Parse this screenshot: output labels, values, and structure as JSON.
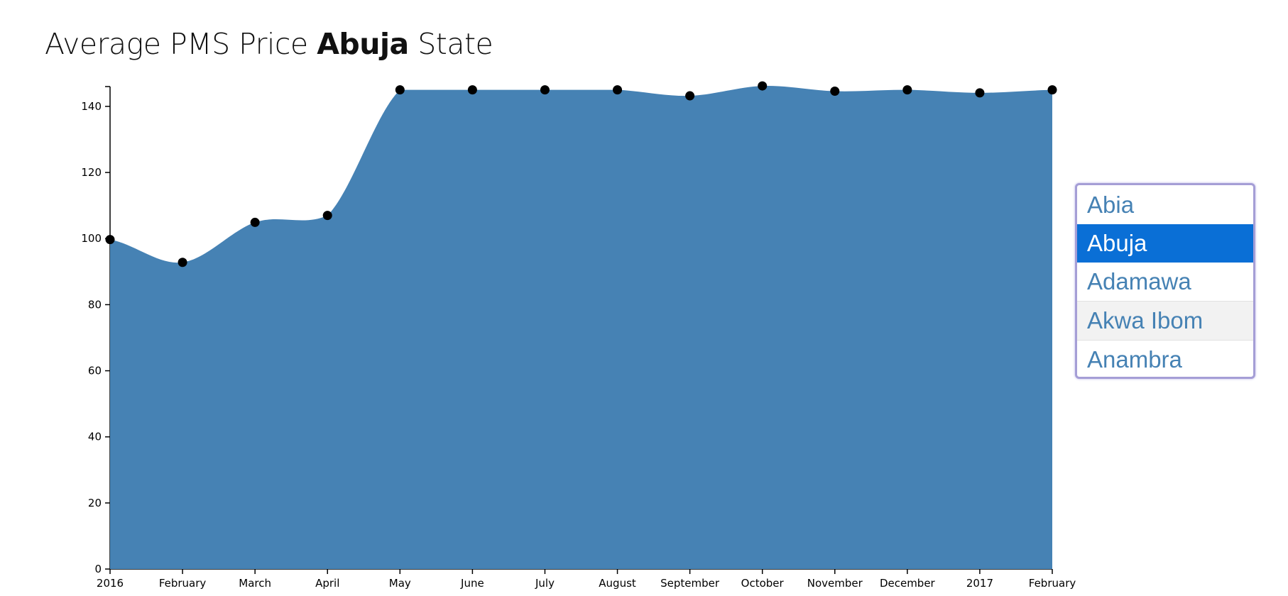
{
  "title": {
    "prefix": "Average PMS Price",
    "state": "Abuja",
    "suffix": "State"
  },
  "chart_data": {
    "type": "area",
    "title": "Average PMS Price Abuja State",
    "xlabel": "",
    "ylabel": "",
    "x_tick_labels": [
      "2016",
      "February",
      "March",
      "April",
      "May",
      "June",
      "July",
      "August",
      "September",
      "October",
      "November",
      "December",
      "2017",
      "February"
    ],
    "y_ticks": [
      0,
      20,
      40,
      60,
      80,
      100,
      120,
      140
    ],
    "ylim": [
      0,
      146
    ],
    "series": [
      {
        "x": [
          "2016-01",
          "2016-02",
          "2016-03",
          "2016-04",
          "2016-05",
          "2016-06",
          "2016-07",
          "2016-08",
          "2016-09",
          "2016-10",
          "2016-11",
          "2016-12",
          "2017-01",
          "2017-02"
        ],
        "values": [
          99.7,
          92.8,
          104.9,
          107.0,
          145.0,
          145.0,
          145.0,
          145.0,
          143.2,
          146.2,
          144.6,
          145.0,
          144.1,
          145.0
        ]
      }
    ],
    "fill_color": "#4682b4",
    "point_color": "#000000",
    "grid": false
  },
  "state_list": {
    "options": [
      "Abia",
      "Abuja",
      "Adamawa",
      "Akwa Ibom",
      "Anambra"
    ],
    "selected": "Abuja",
    "hovered": "Akwa Ibom"
  },
  "colors": {
    "area": "#4682b4",
    "selected_bg": "#0a6fd6",
    "list_border": "#a59ed6"
  }
}
